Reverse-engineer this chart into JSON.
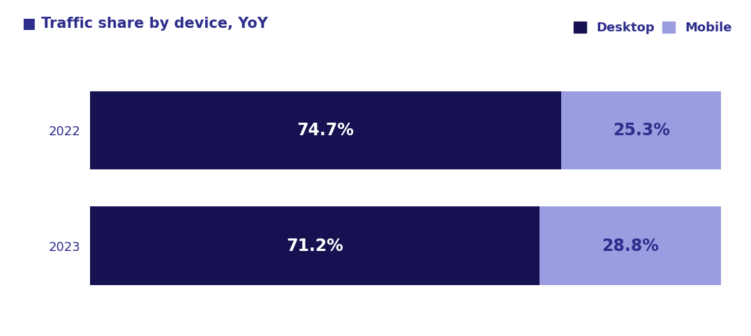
{
  "title": "Traffic share by device, YoY",
  "title_color": "#2d2d8c",
  "background_color": "#ffffff",
  "years": [
    "2022",
    "2023"
  ],
  "desktop_values": [
    74.7,
    71.2
  ],
  "mobile_values": [
    25.3,
    28.8
  ],
  "desktop_labels": [
    "74.7%",
    "71.2%"
  ],
  "mobile_labels": [
    "25.3%",
    "28.8%"
  ],
  "desktop_color": "#161150",
  "mobile_color": "#9b9de0",
  "label_color_desktop": "#ffffff",
  "label_color_mobile": "#2d2d8c",
  "legend_desktop": "Desktop",
  "legend_mobile": "Mobile",
  "legend_color": "#2d2d8c",
  "ytick_color": "#2d2d8c",
  "bar_height": 0.68,
  "label_fontsize": 17,
  "title_fontsize": 15,
  "legend_fontsize": 13,
  "ytick_fontsize": 13
}
